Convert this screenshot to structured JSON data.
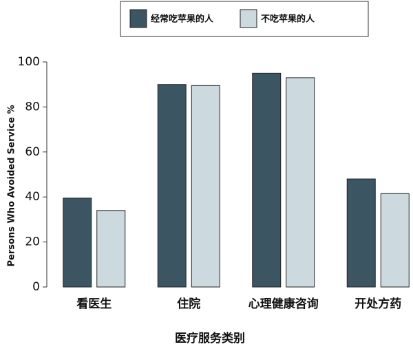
{
  "chart_data": {
    "type": "bar",
    "xlabel": "医疗服务类别",
    "ylabel": "Persons Who Avoided Service  %",
    "categories": [
      "看医生",
      "住院",
      "心理健康咨询",
      "开处方药"
    ],
    "series": [
      {
        "name": "经常吃苹果的人",
        "color": "#3b5562",
        "values": [
          39.5,
          90,
          95,
          48
        ]
      },
      {
        "name": "不吃苹果的人",
        "color": "#ccd9df",
        "values": [
          34,
          89.5,
          93,
          41.5
        ]
      }
    ],
    "ylim": [
      0,
      100
    ],
    "yticks": [
      0,
      20,
      40,
      60,
      80,
      100
    ]
  }
}
